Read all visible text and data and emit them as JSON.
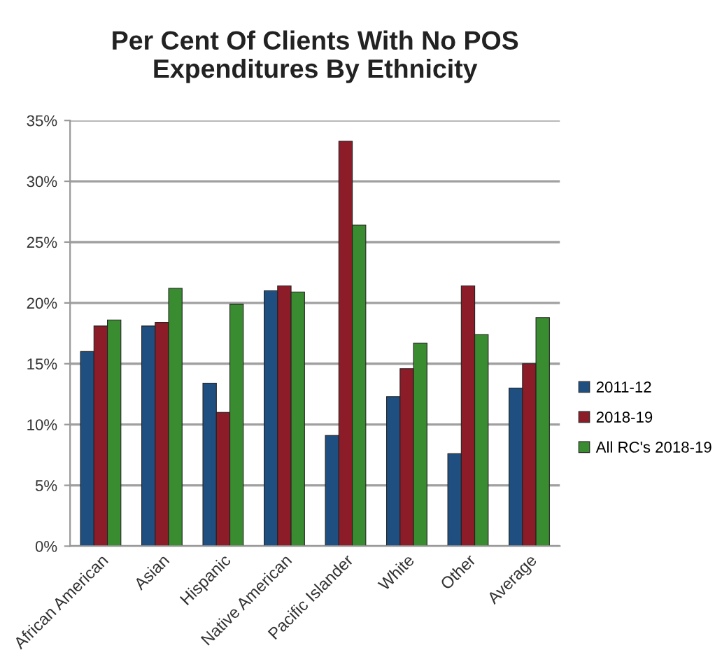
{
  "chart_data": {
    "type": "bar",
    "title": "Per Cent Of Clients With No POS\nExpenditures By Ethnicity",
    "categories": [
      "African American",
      "Asian",
      "Hispanic",
      "Native American",
      "Pacific Islander",
      "White",
      "Other",
      "Average"
    ],
    "series": [
      {
        "name": "2011-12",
        "color": "#1f4f80",
        "values": [
          16.0,
          18.1,
          13.4,
          21.0,
          9.1,
          12.3,
          7.6,
          13.0
        ]
      },
      {
        "name": "2018-19",
        "color": "#8c1c28",
        "values": [
          18.1,
          18.4,
          11.0,
          21.4,
          33.3,
          14.6,
          21.4,
          15.0
        ]
      },
      {
        "name": "All RC's 2018-19",
        "color": "#3a8c30",
        "values": [
          18.6,
          21.2,
          19.9,
          20.9,
          26.4,
          16.7,
          17.4,
          18.8
        ]
      }
    ],
    "ylim": [
      0,
      35
    ],
    "yticks": [
      {
        "value": 0,
        "label": "0%"
      },
      {
        "value": 5,
        "label": "5%"
      },
      {
        "value": 10,
        "label": "10%"
      },
      {
        "value": 15,
        "label": "15%"
      },
      {
        "value": 20,
        "label": "20%"
      },
      {
        "value": 25,
        "label": "25%"
      },
      {
        "value": 30,
        "label": "30%"
      },
      {
        "value": 35,
        "label": "35%"
      }
    ],
    "grid": "y",
    "legend": "right"
  }
}
